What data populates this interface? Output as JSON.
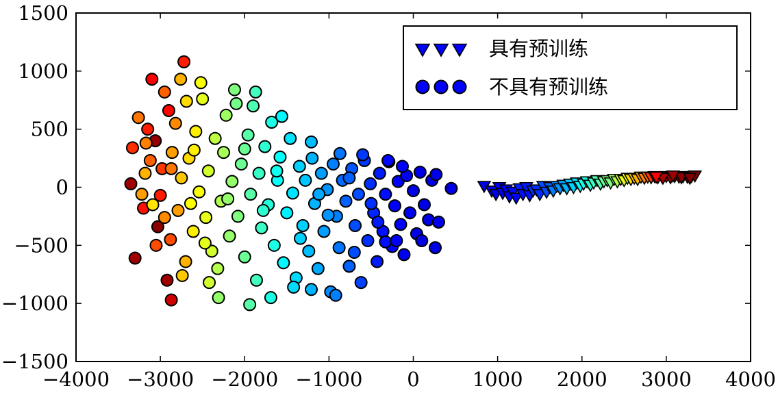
{
  "chart_data": {
    "type": "scatter",
    "title": "",
    "xlabel": "",
    "ylabel": "",
    "xlim": [
      -4000,
      4000
    ],
    "ylim": [
      -1500,
      1500
    ],
    "xticks": [
      -4000,
      -3000,
      -2000,
      -1000,
      0,
      1000,
      2000,
      3000,
      4000
    ],
    "yticks": [
      -1500,
      -1000,
      -500,
      0,
      500,
      1000,
      1500
    ],
    "xtick_labels": [
      "−4000",
      "−3000",
      "−2000",
      "−1000",
      "0",
      "1000",
      "2000",
      "3000",
      "4000"
    ],
    "ytick_labels": [
      "−1500",
      "−1000",
      "−500",
      "0",
      "500",
      "1000",
      "1500"
    ],
    "grid": false,
    "legend_position": "top-right",
    "colormap": "jet",
    "series": [
      {
        "name": "具有预训练",
        "marker": "triangle-down",
        "points": [
          [
            840,
            10,
            0.1
          ],
          [
            930,
            -30,
            0.1
          ],
          [
            980,
            -60,
            0.1
          ],
          [
            1020,
            0,
            0.12
          ],
          [
            1060,
            -50,
            0.11
          ],
          [
            1100,
            -20,
            0.12
          ],
          [
            1140,
            -80,
            0.12
          ],
          [
            1180,
            -40,
            0.13
          ],
          [
            1220,
            -90,
            0.12
          ],
          [
            1260,
            -10,
            0.15
          ],
          [
            1300,
            -60,
            0.14
          ],
          [
            1340,
            0,
            0.15
          ],
          [
            1380,
            -70,
            0.14
          ],
          [
            1420,
            -30,
            0.17
          ],
          [
            1460,
            -20,
            0.17
          ],
          [
            1500,
            -60,
            0.17
          ],
          [
            1540,
            10,
            0.2
          ],
          [
            1580,
            -40,
            0.2
          ],
          [
            1620,
            0,
            0.22
          ],
          [
            1660,
            -30,
            0.25
          ],
          [
            1700,
            10,
            0.25
          ],
          [
            1740,
            -10,
            0.27
          ],
          [
            1780,
            20,
            0.28
          ],
          [
            1820,
            -10,
            0.3
          ],
          [
            1860,
            30,
            0.32
          ],
          [
            1900,
            0,
            0.33
          ],
          [
            1940,
            40,
            0.35
          ],
          [
            1980,
            10,
            0.37
          ],
          [
            2020,
            30,
            0.4
          ],
          [
            2060,
            50,
            0.4
          ],
          [
            2100,
            20,
            0.42
          ],
          [
            2140,
            40,
            0.43
          ],
          [
            2180,
            60,
            0.45
          ],
          [
            2220,
            30,
            0.45
          ],
          [
            2260,
            50,
            0.48
          ],
          [
            2300,
            60,
            0.5
          ],
          [
            2340,
            40,
            0.5
          ],
          [
            2380,
            70,
            0.52
          ],
          [
            2420,
            50,
            0.55
          ],
          [
            2460,
            70,
            0.58
          ],
          [
            2500,
            60,
            0.6
          ],
          [
            2540,
            80,
            0.62
          ],
          [
            2580,
            70,
            0.65
          ],
          [
            2620,
            80,
            0.68
          ],
          [
            2660,
            70,
            0.7
          ],
          [
            2700,
            90,
            0.72
          ],
          [
            2740,
            80,
            0.75
          ],
          [
            2780,
            90,
            0.78
          ],
          [
            2820,
            85,
            0.82
          ],
          [
            2860,
            95,
            0.85
          ],
          [
            2900,
            85,
            0.9
          ],
          [
            2950,
            90,
            0.93
          ],
          [
            3000,
            95,
            0.95
          ],
          [
            3050,
            85,
            0.97
          ],
          [
            3100,
            95,
            0.98
          ],
          [
            3150,
            90,
            0.99
          ],
          [
            3200,
            95,
            0.99
          ],
          [
            3250,
            90,
            1.0
          ],
          [
            3300,
            95,
            1.0
          ],
          [
            3340,
            100,
            1.0
          ],
          [
            2960,
            80,
            0.96
          ],
          [
            3180,
            85,
            0.99
          ],
          [
            2880,
            90,
            0.88
          ],
          [
            3080,
            100,
            0.97
          ],
          [
            3280,
            80,
            1.0
          ]
        ]
      },
      {
        "name": "不具有预训练",
        "marker": "circle",
        "points": [
          [
            -3350,
            30,
            0.97
          ],
          [
            -3300,
            -610,
            0.97
          ],
          [
            -3060,
            400,
            0.98
          ],
          [
            -3030,
            -340,
            0.99
          ],
          [
            -2920,
            -800,
            0.97
          ],
          [
            -2870,
            -970,
            0.92
          ],
          [
            -2720,
            1080,
            0.85
          ],
          [
            -3200,
            -180,
            0.86
          ],
          [
            -3000,
            -70,
            0.85
          ],
          [
            -2900,
            660,
            0.87
          ],
          [
            -3100,
            930,
            0.88
          ],
          [
            -3150,
            500,
            0.85
          ],
          [
            -2980,
            160,
            0.82
          ],
          [
            -3050,
            -500,
            0.8
          ],
          [
            -3120,
            230,
            0.78
          ],
          [
            -2880,
            -450,
            0.8
          ],
          [
            -2950,
            820,
            0.78
          ],
          [
            -3330,
            340,
            0.83
          ],
          [
            -3260,
            600,
            0.76
          ],
          [
            -3180,
            120,
            0.7
          ],
          [
            -3220,
            -60,
            0.72
          ],
          [
            -3090,
            -150,
            0.65
          ],
          [
            -3170,
            380,
            0.75
          ],
          [
            -2860,
            300,
            0.72
          ],
          [
            -2820,
            550,
            0.74
          ],
          [
            -2790,
            -200,
            0.72
          ],
          [
            -2750,
            80,
            0.68
          ],
          [
            -2700,
            -640,
            0.7
          ],
          [
            -2660,
            250,
            0.66
          ],
          [
            -2610,
            -380,
            0.64
          ],
          [
            -2580,
            480,
            0.64
          ],
          [
            -2540,
            -40,
            0.62
          ],
          [
            -2500,
            760,
            0.6
          ],
          [
            -2460,
            -260,
            0.6
          ],
          [
            -2430,
            140,
            0.58
          ],
          [
            -2390,
            -550,
            0.58
          ],
          [
            -2350,
            420,
            0.56
          ],
          [
            -2320,
            -700,
            0.55
          ],
          [
            -2280,
            -120,
            0.55
          ],
          [
            -2250,
            300,
            0.54
          ],
          [
            -2220,
            620,
            0.53
          ],
          [
            -2180,
            -420,
            0.52
          ],
          [
            -2150,
            50,
            0.52
          ],
          [
            -2120,
            840,
            0.5
          ],
          [
            -2080,
            -250,
            0.5
          ],
          [
            -2040,
            200,
            0.48
          ],
          [
            -2000,
            -600,
            0.48
          ],
          [
            -1960,
            450,
            0.46
          ],
          [
            -1930,
            -60,
            0.46
          ],
          [
            -1900,
            700,
            0.45
          ],
          [
            -1860,
            -800,
            0.44
          ],
          [
            -1830,
            120,
            0.43
          ],
          [
            -1800,
            -350,
            0.43
          ],
          [
            -1760,
            350,
            0.42
          ],
          [
            -1720,
            -150,
            0.41
          ],
          [
            -1680,
            560,
            0.4
          ],
          [
            -1650,
            -500,
            0.4
          ],
          [
            -1610,
            60,
            0.38
          ],
          [
            -1580,
            260,
            0.38
          ],
          [
            -1540,
            -650,
            0.37
          ],
          [
            -1500,
            -220,
            0.36
          ],
          [
            -1460,
            420,
            0.35
          ],
          [
            -1430,
            -50,
            0.35
          ],
          [
            -1390,
            -780,
            0.34
          ],
          [
            -1350,
            180,
            0.33
          ],
          [
            -1310,
            -330,
            0.33
          ],
          [
            -1280,
            60,
            0.32
          ],
          [
            -1240,
            -550,
            0.31
          ],
          [
            -1200,
            250,
            0.3
          ],
          [
            -1170,
            -140,
            0.3
          ],
          [
            -1130,
            -700,
            0.29
          ],
          [
            -1090,
            120,
            0.28
          ],
          [
            -1060,
            -380,
            0.28
          ],
          [
            -1020,
            -20,
            0.27
          ],
          [
            -980,
            -900,
            0.26
          ],
          [
            -950,
            200,
            0.25
          ],
          [
            -910,
            -250,
            0.25
          ],
          [
            -880,
            -520,
            0.24
          ],
          [
            -840,
            60,
            0.23
          ],
          [
            -800,
            -120,
            0.22
          ],
          [
            -760,
            -680,
            0.22
          ],
          [
            -730,
            160,
            0.21
          ],
          [
            -690,
            -330,
            0.2
          ],
          [
            -650,
            -60,
            0.2
          ],
          [
            -620,
            -820,
            0.19
          ],
          [
            -580,
            230,
            0.18
          ],
          [
            -540,
            -460,
            0.17
          ],
          [
            -510,
            30,
            0.17
          ],
          [
            -470,
            -220,
            0.16
          ],
          [
            -430,
            -640,
            0.15
          ],
          [
            -400,
            120,
            0.15
          ],
          [
            -360,
            -380,
            0.14
          ],
          [
            -330,
            -60,
            0.14
          ],
          [
            -290,
            220,
            0.13
          ],
          [
            -250,
            -510,
            0.13
          ],
          [
            -220,
            -160,
            0.12
          ],
          [
            -180,
            50,
            0.12
          ],
          [
            -150,
            -320,
            0.12
          ],
          [
            -110,
            -580,
            0.11
          ],
          [
            -80,
            100,
            0.11
          ],
          [
            -40,
            -220,
            0.11
          ],
          [
            0,
            -30,
            0.1
          ],
          [
            40,
            -400,
            0.1
          ],
          [
            80,
            130,
            0.1
          ],
          [
            130,
            -150,
            0.1
          ],
          [
            180,
            -280,
            0.1
          ],
          [
            220,
            60,
            0.1
          ],
          [
            270,
            110,
            0.1
          ],
          [
            260,
            -520,
            0.1
          ],
          [
            300,
            -300,
            0.1
          ],
          [
            450,
            -10,
            0.1
          ],
          [
            -2870,
            160,
            0.76
          ],
          [
            -2950,
            -260,
            0.74
          ],
          [
            -2640,
            -140,
            0.62
          ],
          [
            -2520,
            900,
            0.62
          ],
          [
            -2420,
            -820,
            0.58
          ],
          [
            -2690,
            740,
            0.66
          ],
          [
            -2310,
            -950,
            0.52
          ],
          [
            -2100,
            720,
            0.49
          ],
          [
            -1940,
            -1010,
            0.46
          ],
          [
            -1870,
            820,
            0.44
          ],
          [
            -1690,
            -950,
            0.4
          ],
          [
            -1560,
            610,
            0.37
          ],
          [
            -1420,
            -860,
            0.34
          ],
          [
            -1210,
            390,
            0.31
          ],
          [
            -1210,
            -880,
            0.3
          ],
          [
            -870,
            290,
            0.24
          ],
          [
            -920,
            -930,
            0.25
          ],
          [
            -600,
            280,
            0.18
          ],
          [
            -700,
            -560,
            0.2
          ],
          [
            -300,
            230,
            0.13
          ],
          [
            -330,
            -470,
            0.14
          ],
          [
            -2200,
            -100,
            0.52
          ],
          [
            -1780,
            -200,
            0.42
          ],
          [
            -1340,
            -440,
            0.33
          ],
          [
            -1010,
            -240,
            0.27
          ],
          [
            -500,
            -140,
            0.17
          ],
          [
            -200,
            -460,
            0.12
          ],
          [
            100,
            -460,
            0.1
          ],
          [
            -2600,
            320,
            0.64
          ],
          [
            -2470,
            -480,
            0.6
          ],
          [
            -2000,
            330,
            0.48
          ],
          [
            -1620,
            140,
            0.39
          ],
          [
            -1120,
            -60,
            0.29
          ],
          [
            -760,
            80,
            0.22
          ],
          [
            -420,
            -300,
            0.15
          ],
          [
            -130,
            180,
            0.12
          ],
          [
            -2740,
            -760,
            0.68
          ],
          [
            -2760,
            930,
            0.7
          ]
        ]
      }
    ]
  },
  "legend": {
    "items": [
      {
        "label": "具有预训练",
        "marker": "triangle-down",
        "color": "#0000ff"
      },
      {
        "label": "不具有预训练",
        "marker": "circle",
        "color": "#0000ff"
      }
    ]
  },
  "colors": {
    "marker_edge": "#000000",
    "axes": "#000000",
    "background": "#ffffff"
  }
}
